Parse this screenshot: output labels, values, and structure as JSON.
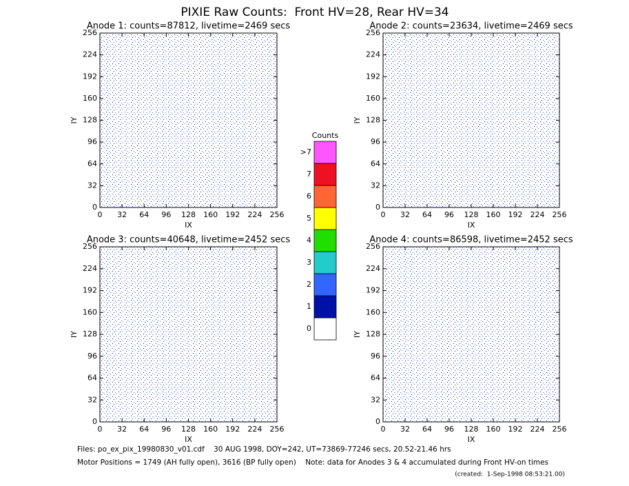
{
  "title": "PIXIE Raw Counts:  Front HV=28, Rear HV=34",
  "chart_data": [
    {
      "type": "heatmap",
      "title": "Anode 1: counts=87812, livetime=2469 secs",
      "xlabel": "IX",
      "ylabel": "IY",
      "xlim": [
        0,
        256
      ],
      "ylim": [
        0,
        256
      ],
      "xticks": [
        0,
        32,
        64,
        96,
        128,
        160,
        192,
        224,
        256
      ],
      "yticks": [
        0,
        32,
        64,
        96,
        128,
        160,
        192,
        224,
        256
      ]
    },
    {
      "type": "heatmap",
      "title": "Anode 2: counts=23634, livetime=2469 secs",
      "xlabel": "IX",
      "ylabel": "IY",
      "xlim": [
        0,
        256
      ],
      "ylim": [
        0,
        256
      ],
      "xticks": [
        0,
        32,
        64,
        96,
        128,
        160,
        192,
        224,
        256
      ],
      "yticks": [
        0,
        32,
        64,
        96,
        128,
        160,
        192,
        224,
        256
      ]
    },
    {
      "type": "heatmap",
      "title": "Anode 3: counts=40648, livetime=2452 secs",
      "xlabel": "IX",
      "ylabel": "IY",
      "xlim": [
        0,
        256
      ],
      "ylim": [
        0,
        256
      ],
      "xticks": [
        0,
        32,
        64,
        96,
        128,
        160,
        192,
        224,
        256
      ],
      "yticks": [
        0,
        32,
        64,
        96,
        128,
        160,
        192,
        224,
        256
      ]
    },
    {
      "type": "heatmap",
      "title": "Anode 4: counts=86598, livetime=2452 secs",
      "xlabel": "IX",
      "ylabel": "IY",
      "xlim": [
        0,
        256
      ],
      "ylim": [
        0,
        256
      ],
      "xticks": [
        0,
        32,
        64,
        96,
        128,
        160,
        192,
        224,
        256
      ],
      "yticks": [
        0,
        32,
        64,
        96,
        128,
        160,
        192,
        224,
        256
      ]
    }
  ],
  "colorbar": {
    "title": "Counts",
    "labels": [
      "0",
      "1",
      "2",
      "3",
      "4",
      "5",
      "6",
      "7",
      ">7"
    ],
    "colors": [
      "#ffffff",
      "#0011aa",
      "#3366ff",
      "#22cccc",
      "#22dd00",
      "#ffff00",
      "#ff6633",
      "#ee1122",
      "#ff55ff"
    ]
  },
  "footer": [
    "Files: po_ex_pix_19980830_v01.cdf    30 AUG 1998, DOY=242, UT=73869-77246 secs, 20.52-21.46 hrs",
    "Motor Positions = 1749 (AH fully open), 3616 (BP fully open)    Note: data for Anodes 3 & 4 accumulated during Front HV-on times",
    "(created:  1-Sep-1998 08:53:21.00)"
  ]
}
